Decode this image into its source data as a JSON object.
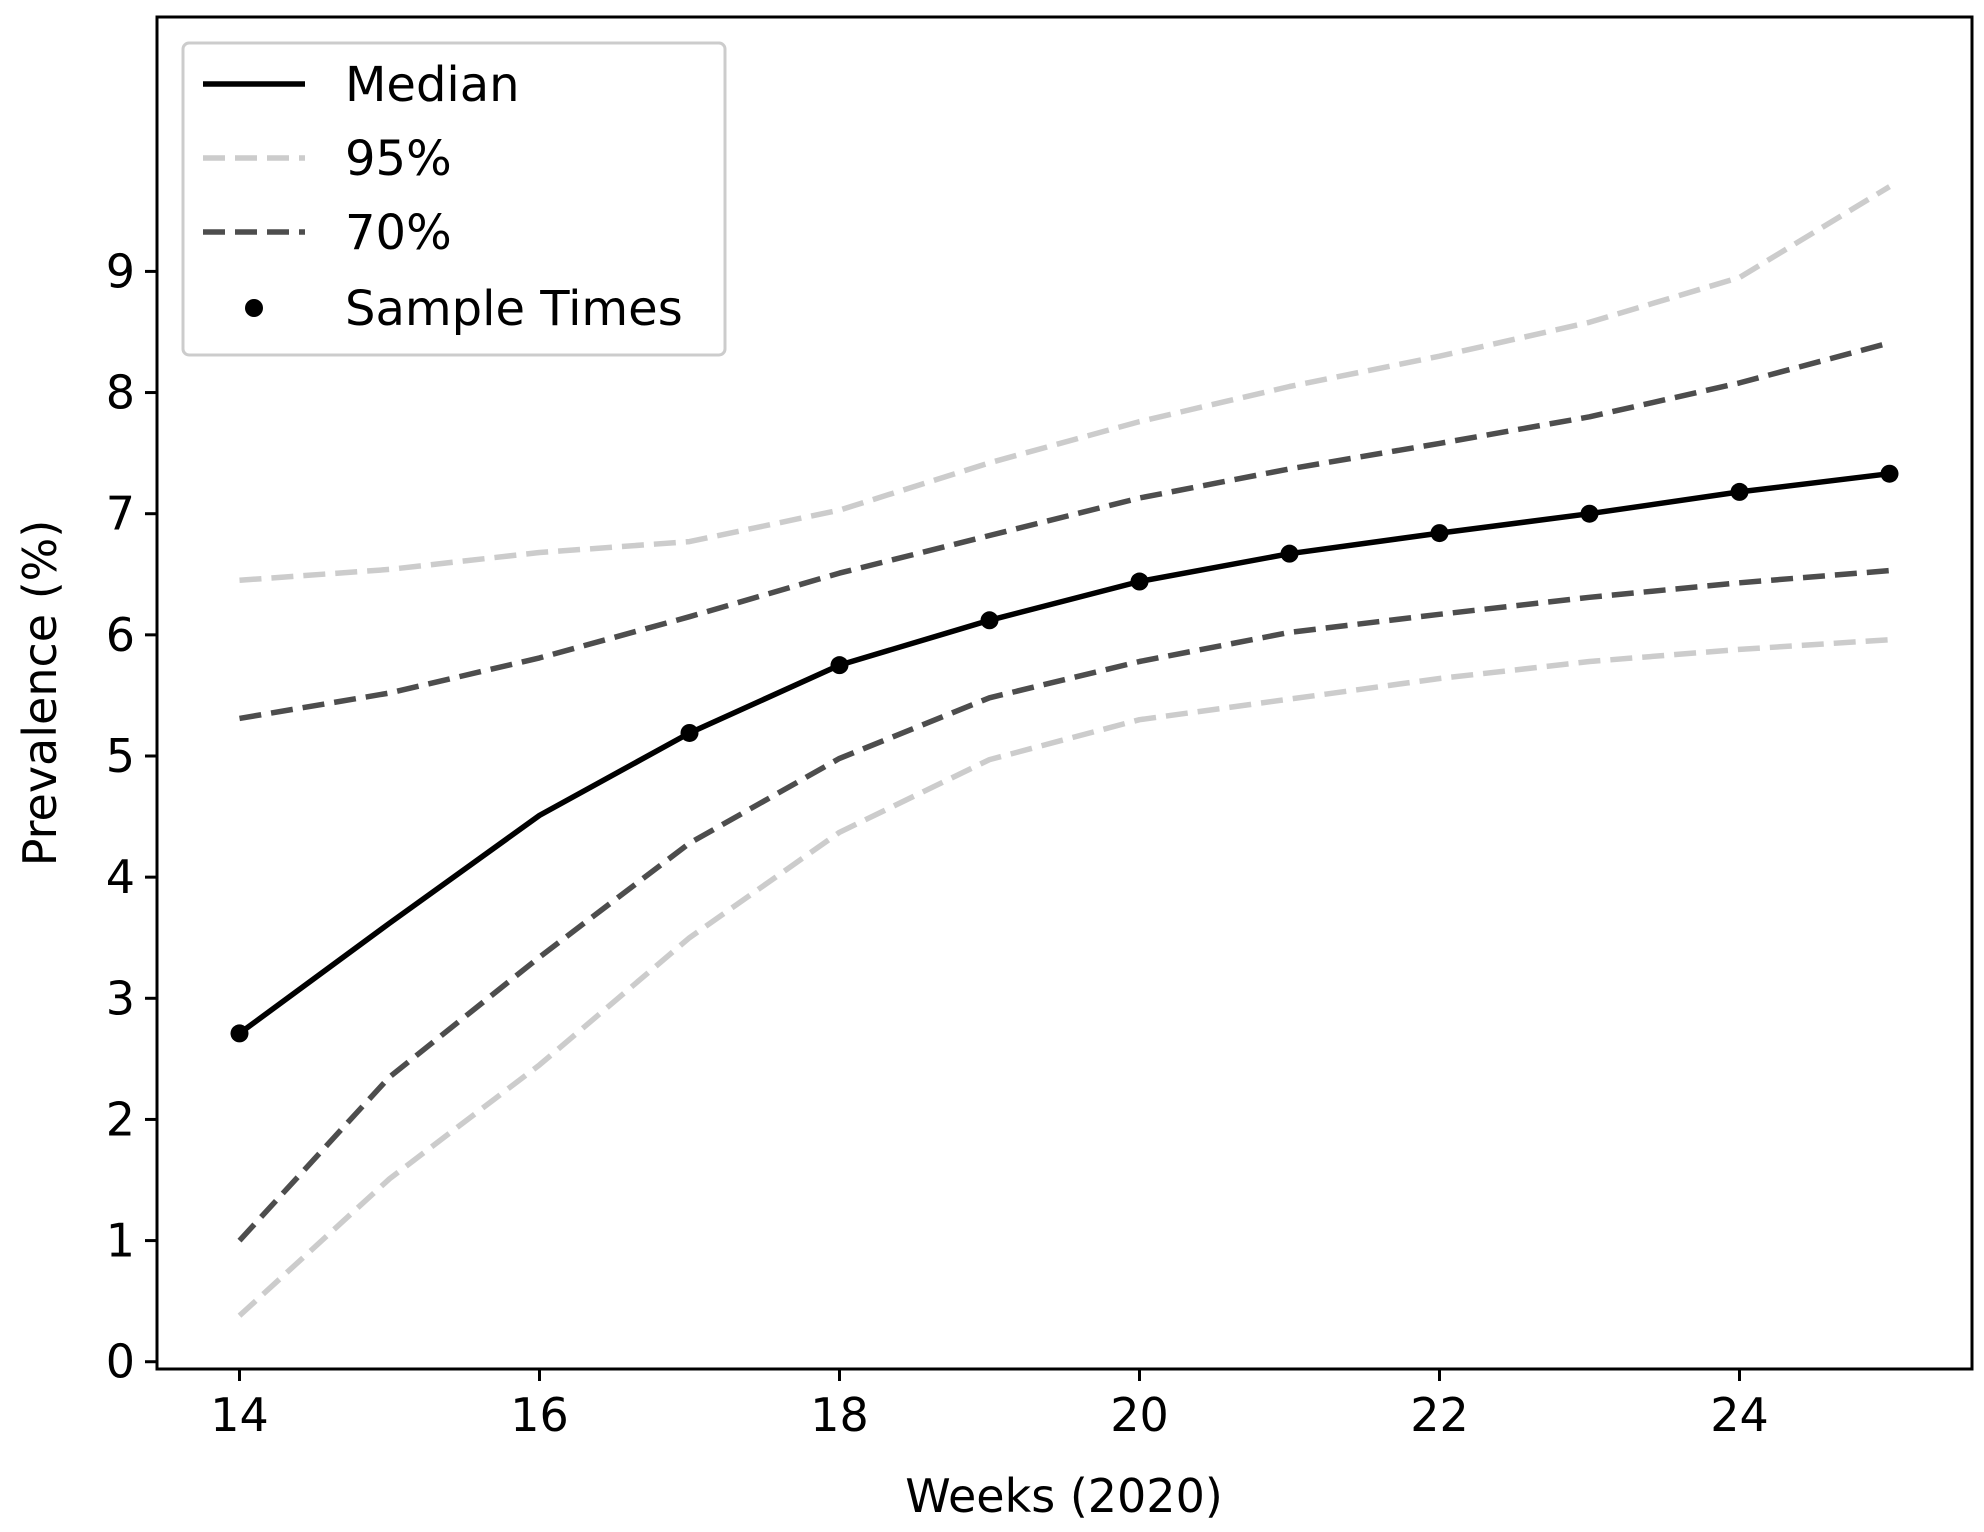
{
  "chart_data": {
    "type": "line",
    "title": "",
    "xlabel": "Weeks (2020)",
    "ylabel": "Prevalence (%)",
    "xlim": [
      13.45,
      25.55
    ],
    "ylim": [
      -0.06,
      11.1
    ],
    "xticks": [
      14,
      16,
      18,
      20,
      22,
      24
    ],
    "yticks": [
      0,
      1,
      2,
      3,
      4,
      5,
      6,
      7,
      8,
      9
    ],
    "grid": false,
    "legend": {
      "position": "top-left"
    },
    "x": [
      14,
      15,
      16,
      17,
      18,
      19,
      20,
      21,
      22,
      23,
      24,
      25
    ],
    "series": [
      {
        "name": "Median",
        "style": "solid",
        "color": "#000000",
        "values": [
          2.71,
          3.62,
          4.51,
          5.19,
          5.75,
          6.12,
          6.44,
          6.67,
          6.84,
          7.0,
          7.18,
          7.33
        ]
      },
      {
        "name": "95%",
        "style": "dashed",
        "color": "#cccccc",
        "band": "upper",
        "values": [
          6.45,
          6.54,
          6.68,
          6.77,
          7.03,
          7.42,
          7.76,
          8.05,
          8.3,
          8.58,
          8.95,
          9.7
        ]
      },
      {
        "name": "95%",
        "style": "dashed",
        "color": "#cccccc",
        "band": "lower",
        "values": [
          0.38,
          1.51,
          2.45,
          3.5,
          4.37,
          4.97,
          5.3,
          5.47,
          5.64,
          5.78,
          5.88,
          5.96
        ]
      },
      {
        "name": "70%",
        "style": "dashed",
        "color": "#4d4d4d",
        "band": "upper",
        "values": [
          5.31,
          5.52,
          5.81,
          6.15,
          6.51,
          6.82,
          7.13,
          7.37,
          7.58,
          7.8,
          8.08,
          8.41
        ]
      },
      {
        "name": "70%",
        "style": "dashed",
        "color": "#4d4d4d",
        "band": "lower",
        "values": [
          1.0,
          2.35,
          3.34,
          4.28,
          4.98,
          5.48,
          5.78,
          6.02,
          6.17,
          6.31,
          6.43,
          6.53
        ]
      }
    ],
    "sample_times": {
      "name": "Sample Times",
      "x": [
        14,
        17,
        18,
        19,
        20,
        21,
        22,
        23,
        24,
        25
      ],
      "values": [
        2.71,
        5.19,
        5.75,
        6.12,
        6.44,
        6.67,
        6.84,
        7.0,
        7.18,
        7.33
      ]
    },
    "legend_entries": [
      {
        "label": "Median",
        "kind": "line",
        "style": "solid",
        "color": "#000000"
      },
      {
        "label": "95%",
        "kind": "line",
        "style": "dashed",
        "color": "#cccccc"
      },
      {
        "label": "70%",
        "kind": "line",
        "style": "dashed",
        "color": "#4d4d4d"
      },
      {
        "label": "Sample Times",
        "kind": "marker",
        "color": "#000000"
      }
    ]
  }
}
